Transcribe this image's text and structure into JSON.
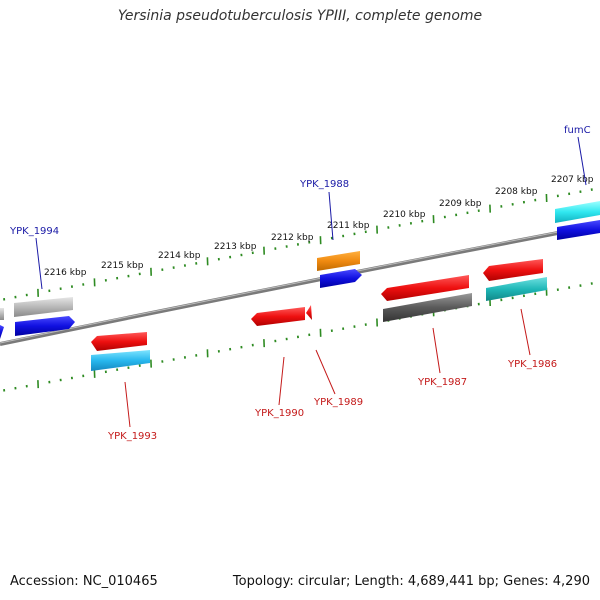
{
  "title": "Yersinia pseudotuberculosis YPIII, complete genome",
  "accession": "Accession: NC_010465",
  "genome_info": "Topology: circular; Length: 4,689,441 bp; Genes: 4,290",
  "kbp_labels": {
    "k2216": "2216 kbp",
    "k2215": "2215 kbp",
    "k2214": "2214 kbp",
    "k2213": "2213 kbp",
    "k2212": "2212 kbp",
    "k2211": "2211 kbp",
    "k2210": "2210 kbp",
    "k2209": "2209 kbp",
    "k2208": "2208 kbp",
    "k2207": "2207 kbp"
  },
  "gene_labels": {
    "fumC": "fumC",
    "ypk1988": "YPK_1988",
    "ypk1994": "YPK_1994",
    "ypk1993": "YPK_1993",
    "ypk1990": "YPK_1990",
    "ypk1989": "YPK_1989",
    "ypk1987": "YPK_1987",
    "ypk1986": "YPK_1986"
  },
  "colors": {
    "label_top": "#1a1aa6",
    "label_bottom": "#c41a1a",
    "tick": "#2e8b22",
    "backbone": "#888888"
  }
}
